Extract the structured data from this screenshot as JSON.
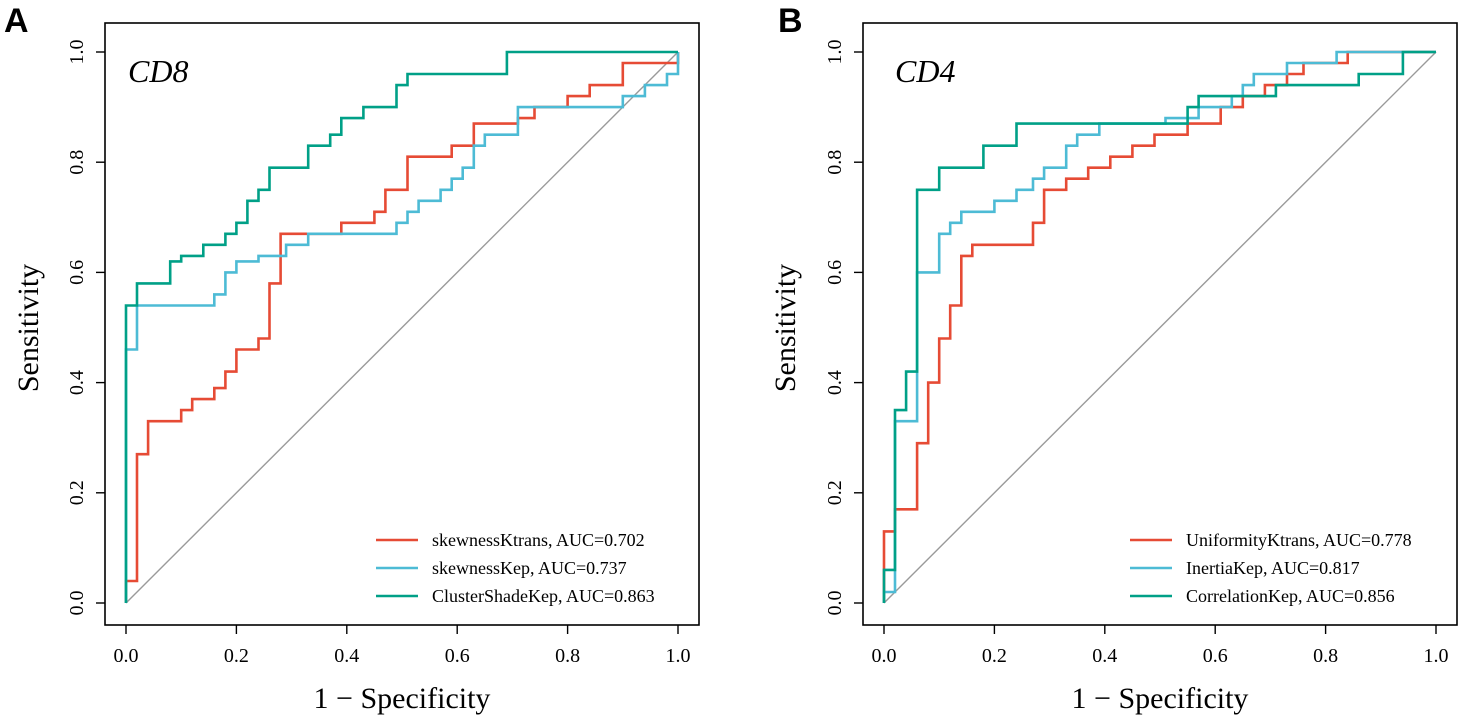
{
  "chart_data": [
    {
      "type": "line",
      "panel_label": "A",
      "title": "CD8",
      "xlabel": "1 − Specificity",
      "ylabel": "Sensitivity",
      "xlim": [
        0,
        1
      ],
      "ylim": [
        0,
        1
      ],
      "x_ticks": [
        "0.0",
        "0.2",
        "0.4",
        "0.6",
        "0.8",
        "1.0"
      ],
      "y_ticks": [
        "0.0",
        "0.2",
        "0.4",
        "0.6",
        "0.8",
        "1.0"
      ],
      "grid": false,
      "legend_position": "bottom-right",
      "reference_line": {
        "x": [
          0,
          1
        ],
        "y": [
          0,
          1
        ],
        "color": "#9a9a9a"
      },
      "series": [
        {
          "name": "skewnessKtrans, AUC=0.702",
          "color": "#E64B35",
          "x": [
            0,
            0,
            0.02,
            0.02,
            0.04,
            0.04,
            0.1,
            0.1,
            0.12,
            0.12,
            0.16,
            0.16,
            0.18,
            0.18,
            0.2,
            0.2,
            0.24,
            0.24,
            0.26,
            0.26,
            0.28,
            0.28,
            0.39,
            0.39,
            0.45,
            0.45,
            0.47,
            0.47,
            0.51,
            0.51,
            0.59,
            0.59,
            0.63,
            0.63,
            0.71,
            0.71,
            0.74,
            0.74,
            0.8,
            0.8,
            0.84,
            0.84,
            0.9,
            0.9,
            1.0,
            1.0
          ],
          "y": [
            0,
            0.04,
            0.04,
            0.27,
            0.27,
            0.33,
            0.33,
            0.35,
            0.35,
            0.37,
            0.37,
            0.39,
            0.39,
            0.42,
            0.42,
            0.46,
            0.46,
            0.48,
            0.48,
            0.58,
            0.58,
            0.67,
            0.67,
            0.69,
            0.69,
            0.71,
            0.71,
            0.75,
            0.75,
            0.81,
            0.81,
            0.83,
            0.83,
            0.87,
            0.87,
            0.88,
            0.88,
            0.9,
            0.9,
            0.92,
            0.92,
            0.94,
            0.94,
            0.98,
            0.98,
            1.0
          ]
        },
        {
          "name": "skewnessKep, AUC=0.737",
          "color": "#4DBBD5",
          "x": [
            0,
            0,
            0.02,
            0.02,
            0.16,
            0.16,
            0.18,
            0.18,
            0.2,
            0.2,
            0.24,
            0.24,
            0.29,
            0.29,
            0.33,
            0.33,
            0.49,
            0.49,
            0.51,
            0.51,
            0.53,
            0.53,
            0.57,
            0.57,
            0.59,
            0.59,
            0.61,
            0.61,
            0.63,
            0.63,
            0.65,
            0.65,
            0.71,
            0.71,
            0.9,
            0.9,
            0.94,
            0.94,
            0.98,
            0.98,
            1.0,
            1.0
          ],
          "y": [
            0,
            0.46,
            0.46,
            0.54,
            0.54,
            0.56,
            0.56,
            0.6,
            0.6,
            0.62,
            0.62,
            0.63,
            0.63,
            0.65,
            0.65,
            0.67,
            0.67,
            0.69,
            0.69,
            0.71,
            0.71,
            0.73,
            0.73,
            0.75,
            0.75,
            0.77,
            0.77,
            0.79,
            0.79,
            0.83,
            0.83,
            0.85,
            0.85,
            0.9,
            0.9,
            0.92,
            0.92,
            0.94,
            0.94,
            0.96,
            0.96,
            1.0
          ]
        },
        {
          "name": "ClusterShadeKep, AUC=0.863",
          "color": "#00A087",
          "x": [
            0,
            0,
            0.02,
            0.02,
            0.08,
            0.08,
            0.1,
            0.1,
            0.14,
            0.14,
            0.18,
            0.18,
            0.2,
            0.2,
            0.22,
            0.22,
            0.24,
            0.24,
            0.26,
            0.26,
            0.33,
            0.33,
            0.37,
            0.37,
            0.39,
            0.39,
            0.43,
            0.43,
            0.49,
            0.49,
            0.51,
            0.51,
            0.69,
            0.69,
            1.0
          ],
          "y": [
            0,
            0.54,
            0.54,
            0.58,
            0.58,
            0.62,
            0.62,
            0.63,
            0.63,
            0.65,
            0.65,
            0.67,
            0.67,
            0.69,
            0.69,
            0.73,
            0.73,
            0.75,
            0.75,
            0.79,
            0.79,
            0.83,
            0.83,
            0.85,
            0.85,
            0.88,
            0.88,
            0.9,
            0.9,
            0.94,
            0.94,
            0.96,
            0.96,
            1.0,
            1.0
          ]
        }
      ]
    },
    {
      "type": "line",
      "panel_label": "B",
      "title": "CD4",
      "xlabel": "1 − Specificity",
      "ylabel": "Sensitivity",
      "xlim": [
        0,
        1
      ],
      "ylim": [
        0,
        1
      ],
      "x_ticks": [
        "0.0",
        "0.2",
        "0.4",
        "0.6",
        "0.8",
        "1.0"
      ],
      "y_ticks": [
        "0.0",
        "0.2",
        "0.4",
        "0.6",
        "0.8",
        "1.0"
      ],
      "grid": false,
      "legend_position": "bottom-right",
      "reference_line": {
        "x": [
          0,
          1
        ],
        "y": [
          0,
          1
        ],
        "color": "#9a9a9a"
      },
      "series": [
        {
          "name": "UniformityKtrans, AUC=0.778",
          "color": "#E64B35",
          "x": [
            0,
            0,
            0.02,
            0.02,
            0.06,
            0.06,
            0.08,
            0.08,
            0.1,
            0.1,
            0.12,
            0.12,
            0.14,
            0.14,
            0.16,
            0.16,
            0.27,
            0.27,
            0.29,
            0.29,
            0.33,
            0.33,
            0.37,
            0.37,
            0.41,
            0.41,
            0.45,
            0.45,
            0.49,
            0.49,
            0.55,
            0.55,
            0.61,
            0.61,
            0.65,
            0.65,
            0.69,
            0.69,
            0.73,
            0.73,
            0.76,
            0.76,
            0.8,
            0.8,
            0.84,
            0.84,
            1.0
          ],
          "y": [
            0,
            0.13,
            0.13,
            0.17,
            0.17,
            0.29,
            0.29,
            0.4,
            0.4,
            0.48,
            0.48,
            0.54,
            0.54,
            0.63,
            0.63,
            0.65,
            0.65,
            0.69,
            0.69,
            0.75,
            0.75,
            0.77,
            0.77,
            0.79,
            0.79,
            0.81,
            0.81,
            0.83,
            0.83,
            0.85,
            0.85,
            0.87,
            0.87,
            0.9,
            0.9,
            0.92,
            0.92,
            0.94,
            0.94,
            0.96,
            0.96,
            0.98,
            0.98,
            0.98,
            0.98,
            1.0,
            1.0
          ]
        },
        {
          "name": "InertiaKep, AUC=0.817",
          "color": "#4DBBD5",
          "x": [
            0,
            0,
            0.02,
            0.02,
            0.06,
            0.06,
            0.1,
            0.1,
            0.12,
            0.12,
            0.14,
            0.14,
            0.2,
            0.2,
            0.24,
            0.24,
            0.27,
            0.27,
            0.29,
            0.29,
            0.33,
            0.33,
            0.35,
            0.35,
            0.39,
            0.39,
            0.51,
            0.51,
            0.57,
            0.57,
            0.63,
            0.63,
            0.65,
            0.65,
            0.67,
            0.67,
            0.69,
            0.69,
            0.73,
            0.73,
            0.82,
            0.82,
            1.0
          ],
          "y": [
            0,
            0.02,
            0.02,
            0.33,
            0.33,
            0.6,
            0.6,
            0.67,
            0.67,
            0.69,
            0.69,
            0.71,
            0.71,
            0.73,
            0.73,
            0.75,
            0.75,
            0.77,
            0.77,
            0.79,
            0.79,
            0.83,
            0.83,
            0.85,
            0.85,
            0.87,
            0.87,
            0.88,
            0.88,
            0.9,
            0.9,
            0.92,
            0.92,
            0.94,
            0.94,
            0.96,
            0.96,
            0.96,
            0.96,
            0.98,
            0.98,
            1.0,
            1.0
          ]
        },
        {
          "name": "CorrelationKep, AUC=0.856",
          "color": "#00A087",
          "x": [
            0,
            0,
            0.02,
            0.02,
            0.04,
            0.04,
            0.06,
            0.06,
            0.1,
            0.1,
            0.14,
            0.14,
            0.18,
            0.18,
            0.24,
            0.24,
            0.29,
            0.29,
            0.55,
            0.55,
            0.57,
            0.57,
            0.61,
            0.61,
            0.71,
            0.71,
            0.86,
            0.86,
            0.94,
            0.94,
            1.0
          ],
          "y": [
            0,
            0.06,
            0.06,
            0.35,
            0.35,
            0.42,
            0.42,
            0.75,
            0.75,
            0.79,
            0.79,
            0.79,
            0.79,
            0.83,
            0.83,
            0.87,
            0.87,
            0.87,
            0.87,
            0.9,
            0.9,
            0.92,
            0.92,
            0.92,
            0.92,
            0.94,
            0.94,
            0.96,
            0.96,
            1.0,
            1.0
          ]
        }
      ]
    }
  ]
}
